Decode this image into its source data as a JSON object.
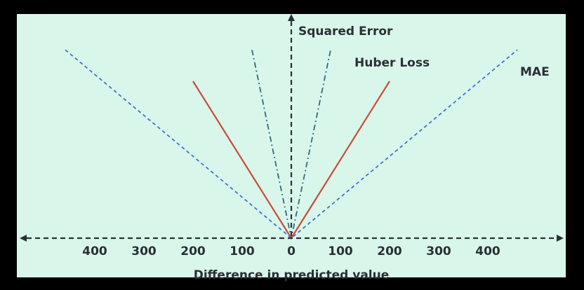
{
  "chart_data": {
    "type": "line",
    "title": "",
    "xlabel": "Difference in predicted value",
    "ylabel": "",
    "xlim": [
      -500,
      500
    ],
    "ylim": [
      0,
      1
    ],
    "x_tick_values": [
      -400,
      -300,
      -200,
      -100,
      0,
      100,
      200,
      300,
      400
    ],
    "x_tick_labels": [
      "400",
      "300",
      "200",
      "100",
      "0",
      "100",
      "200",
      "300",
      "400"
    ],
    "grid": false,
    "series": [
      {
        "name": "Squared Error",
        "style": "dashdot",
        "color": "#2e6b84",
        "points": [
          [
            -80,
            0.96
          ],
          [
            0,
            0
          ],
          [
            80,
            0.96
          ]
        ]
      },
      {
        "name": "Huber Loss",
        "style": "solid",
        "color": "#cc4b37",
        "points": [
          [
            -200,
            0.8
          ],
          [
            0,
            0
          ],
          [
            200,
            0.8
          ]
        ]
      },
      {
        "name": "MAE",
        "style": "dashed",
        "color": "#3f74d6",
        "points": [
          [
            -460,
            0.96
          ],
          [
            0,
            0
          ],
          [
            460,
            0.96
          ]
        ]
      }
    ]
  },
  "colors": {
    "background": "#d8f7ea",
    "axis": "#2b2f36",
    "text": "#2b2f36",
    "frame": "#000000"
  }
}
